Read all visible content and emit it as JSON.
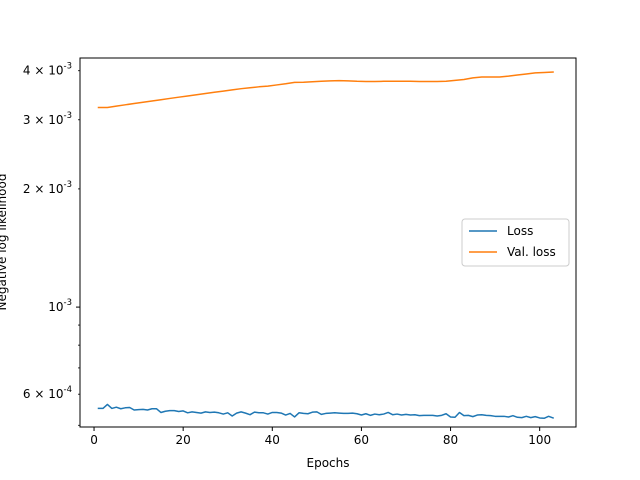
{
  "chart_data": {
    "type": "line",
    "title": "",
    "xlabel": "Epochs",
    "ylabel": "Negative log likelihood",
    "yscale": "log",
    "xlim": [
      -3.15,
      108.15
    ],
    "ylim": [
      0.000495,
      0.00431
    ],
    "x_ticks": [
      0,
      20,
      40,
      60,
      80,
      100
    ],
    "x_tick_labels": [
      "0",
      "20",
      "40",
      "60",
      "80",
      "100"
    ],
    "y_major_ticks": [
      0.001
    ],
    "y_major_tick_labels": [
      "10^{-3}"
    ],
    "y_minor_ticks": [
      0.0006,
      0.002,
      0.003,
      0.004
    ],
    "y_minor_tick_labels": [
      "6 × 10^{-4}",
      "2 × 10^{-3}",
      "3 × 10^{-3}",
      "4 × 10^{-3}"
    ],
    "grid": false,
    "legend": {
      "position": "center-right",
      "entries": [
        "Loss",
        "Val. loss"
      ]
    },
    "colors": {
      "Loss": "#1f77b4",
      "Val. loss": "#ff7f0e"
    },
    "series": [
      {
        "name": "Loss",
        "x": [
          1,
          2,
          3,
          4,
          5,
          6,
          7,
          8,
          9,
          10,
          11,
          12,
          13,
          14,
          15,
          16,
          17,
          18,
          19,
          20,
          21,
          22,
          23,
          24,
          25,
          26,
          27,
          28,
          29,
          30,
          31,
          32,
          33,
          34,
          35,
          36,
          37,
          38,
          39,
          40,
          41,
          42,
          43,
          44,
          45,
          46,
          47,
          48,
          49,
          50,
          51,
          52,
          53,
          54,
          55,
          56,
          57,
          58,
          59,
          60,
          61,
          62,
          63,
          64,
          65,
          66,
          67,
          68,
          69,
          70,
          71,
          72,
          73,
          74,
          75,
          76,
          77,
          78,
          79,
          80,
          81,
          82,
          83,
          84,
          85,
          86,
          87,
          88,
          89,
          90,
          91,
          92,
          93,
          94,
          95,
          96,
          97,
          98,
          99,
          100,
          101,
          102,
          103
        ],
        "y": [
          0.000552,
          0.000552,
          0.000565,
          0.000552,
          0.000556,
          0.000551,
          0.000554,
          0.000555,
          0.000547,
          0.000548,
          0.000549,
          0.000547,
          0.000551,
          0.000551,
          0.000539,
          0.000543,
          0.000545,
          0.000545,
          0.000542,
          0.000544,
          0.000538,
          0.000541,
          0.000539,
          0.000537,
          0.000541,
          0.000539,
          0.00054,
          0.000538,
          0.000534,
          0.000538,
          0.000528,
          0.000537,
          0.000541,
          0.000537,
          0.000532,
          0.00054,
          0.000538,
          0.000538,
          0.000534,
          0.000539,
          0.000539,
          0.000537,
          0.000531,
          0.000536,
          0.000525,
          0.000538,
          0.000536,
          0.000535,
          0.00054,
          0.000541,
          0.000533,
          0.000536,
          0.000537,
          0.000538,
          0.000537,
          0.000536,
          0.000536,
          0.000537,
          0.000535,
          0.000531,
          0.000535,
          0.00053,
          0.000534,
          0.000532,
          0.000534,
          0.000539,
          0.000532,
          0.000534,
          0.000531,
          0.000533,
          0.000531,
          0.000532,
          0.000529,
          0.00053,
          0.00053,
          0.00053,
          0.000528,
          0.00053,
          0.000535,
          0.000525,
          0.000524,
          0.000539,
          0.000529,
          0.00053,
          0.000526,
          0.000531,
          0.000532,
          0.00053,
          0.000529,
          0.000527,
          0.000527,
          0.000527,
          0.000525,
          0.000529,
          0.000524,
          0.000523,
          0.000527,
          0.000523,
          0.000526,
          0.000522,
          0.000521,
          0.000527,
          0.000522
        ]
      },
      {
        "name": "Val. loss",
        "x": [
          1,
          3,
          5,
          7,
          9,
          11,
          13,
          15,
          17,
          19,
          21,
          23,
          25,
          27,
          29,
          31,
          33,
          35,
          37,
          39,
          41,
          43,
          45,
          47,
          49,
          51,
          53,
          55,
          57,
          59,
          61,
          63,
          65,
          67,
          69,
          71,
          73,
          75,
          77,
          79,
          81,
          83,
          85,
          87,
          89,
          91,
          93,
          95,
          97,
          99,
          101,
          103
        ],
        "y": [
          0.003225,
          0.003225,
          0.00325,
          0.003275,
          0.0033,
          0.003325,
          0.00335,
          0.003375,
          0.0034,
          0.003425,
          0.00345,
          0.003475,
          0.0035,
          0.003525,
          0.00355,
          0.003575,
          0.0036,
          0.00362,
          0.00364,
          0.003655,
          0.00368,
          0.003705,
          0.003735,
          0.00374,
          0.00375,
          0.00376,
          0.00377,
          0.003775,
          0.00377,
          0.00376,
          0.003755,
          0.003755,
          0.00376,
          0.00376,
          0.00376,
          0.00376,
          0.003755,
          0.003755,
          0.003755,
          0.00376,
          0.00378,
          0.0038,
          0.003835,
          0.003855,
          0.003855,
          0.003855,
          0.003875,
          0.0039,
          0.003925,
          0.00395,
          0.00396,
          0.00397
        ]
      }
    ]
  }
}
